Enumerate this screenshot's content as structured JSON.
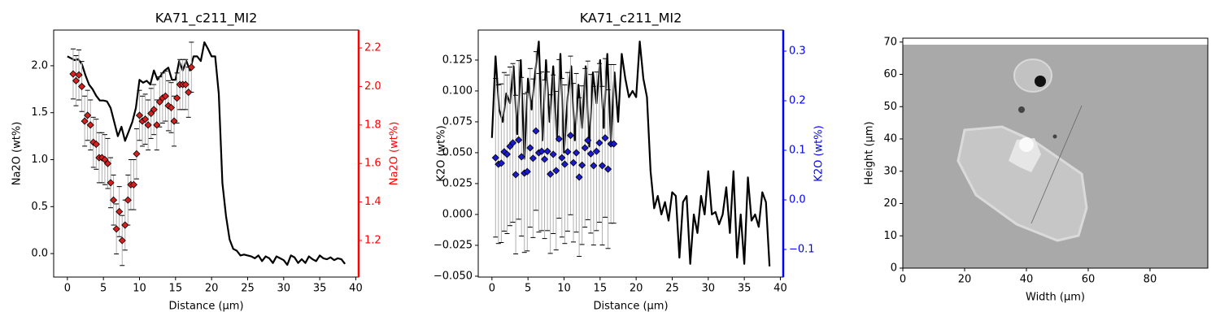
{
  "chart_data": [
    {
      "type": "dual-axis",
      "title": "KA71_c211_MI2",
      "xlabel": "Distance (µm)",
      "ylabel": "Na2O (wt%)",
      "y2label": "Na2O (wt%)",
      "y2color": "#ff0000",
      "xlim": [
        -1.9,
        40.4
      ],
      "xticks": [
        0,
        5,
        10,
        15,
        20,
        25,
        30,
        35,
        40
      ],
      "ylim": [
        -0.25,
        2.38
      ],
      "yticks": [
        {
          "value": 0,
          "label": "0.0"
        },
        0.5,
        {
          "value": 1,
          "label": "1.0"
        },
        1.5,
        {
          "value": 2,
          "label": "2.0"
        }
      ],
      "y2lim": [
        1.01,
        2.293
      ],
      "y2ticks": [
        1.2,
        1.4,
        1.6,
        1.8,
        {
          "value": 2,
          "label": "2.0"
        },
        2.2
      ],
      "series": [
        {
          "color": "#000000",
          "x": [
            0,
            0.5,
            1,
            1.5,
            2,
            2.5,
            3,
            3.5,
            4,
            4.5,
            5,
            5.5,
            6,
            6.5,
            7,
            7.5,
            8,
            8.5,
            9,
            9.5,
            10,
            10.5,
            11,
            11.5,
            12,
            12.5,
            13,
            13.5,
            14,
            14.5,
            15,
            15.5,
            16,
            16.5,
            17,
            17.5,
            18,
            18.5,
            19,
            19.5,
            20,
            20.5,
            21,
            21.5,
            22,
            22.5,
            23,
            23.5,
            24,
            24.5,
            25,
            25.5,
            26,
            26.5,
            27,
            27.5,
            28,
            28.5,
            29,
            29.5,
            30,
            30.5,
            31,
            31.5,
            32,
            32.5,
            33,
            33.5,
            34,
            34.5,
            35,
            35.5,
            36,
            36.5,
            37,
            37.5,
            38,
            38.5
          ],
          "values": [
            2.1,
            2.08,
            2.06,
            2.07,
            2.02,
            1.9,
            1.8,
            1.75,
            1.68,
            1.63,
            1.63,
            1.62,
            1.55,
            1.4,
            1.25,
            1.35,
            1.2,
            1.3,
            1.4,
            1.55,
            1.85,
            1.82,
            1.84,
            1.8,
            1.95,
            1.85,
            1.9,
            1.95,
            1.98,
            1.85,
            1.85,
            2.05,
            1.95,
            2.05,
            1.95,
            2.1,
            2.1,
            2.05,
            2.25,
            2.18,
            2.1,
            2.1,
            1.7,
            0.75,
            0.4,
            0.15,
            0.05,
            0.03,
            -0.02,
            -0.01,
            -0.02,
            -0.03,
            -0.05,
            -0.02,
            -0.08,
            -0.03,
            -0.05,
            -0.1,
            -0.03,
            -0.05,
            -0.07,
            -0.12,
            -0.02,
            -0.04,
            -0.1,
            -0.06,
            -0.1,
            -0.03,
            -0.06,
            -0.08,
            -0.02,
            -0.05,
            -0.06,
            -0.04,
            -0.07,
            -0.05,
            -0.06,
            -0.11
          ]
        },
        {
          "color": "#d62020",
          "marker": "diamond",
          "axis": "y2",
          "x": [
            0.8,
            1.2,
            1.6,
            2.0,
            2.4,
            2.8,
            3.2,
            3.6,
            4.0,
            4.4,
            4.8,
            5.2,
            5.6,
            6.0,
            6.4,
            6.8,
            7.2,
            7.6,
            8.0,
            8.4,
            8.8,
            9.2,
            9.6,
            10.0,
            10.4,
            10.8,
            11.2,
            11.6,
            12.0,
            12.4,
            12.8,
            13.2,
            13.6,
            14.0,
            14.4,
            14.8,
            15.2,
            15.6,
            16.0,
            16.4,
            16.8,
            17.2
          ],
          "values": [
            2.065,
            2.03,
            2.06,
            2.0,
            1.82,
            1.85,
            1.8,
            1.71,
            1.7,
            1.63,
            1.63,
            1.62,
            1.6,
            1.5,
            1.41,
            1.26,
            1.35,
            1.2,
            1.28,
            1.41,
            1.49,
            1.49,
            1.65,
            1.85,
            1.82,
            1.83,
            1.8,
            1.86,
            1.88,
            1.8,
            1.92,
            1.94,
            1.95,
            1.9,
            1.89,
            1.82,
            1.94,
            2.01,
            2.01,
            2.01,
            1.97,
            2.1
          ],
          "errors": [
            0.13,
            0.13,
            0.13,
            0.13,
            0.13,
            0.13,
            0.13,
            0.13,
            0.13,
            0.13,
            0.13,
            0.13,
            0.13,
            0.13,
            0.13,
            0.13,
            0.13,
            0.13,
            0.13,
            0.13,
            0.13,
            0.13,
            0.13,
            0.13,
            0.13,
            0.13,
            0.13,
            0.13,
            0.13,
            0.13,
            0.13,
            0.13,
            0.13,
            0.13,
            0.13,
            0.13,
            0.13,
            0.13,
            0.13,
            0.13,
            0.13,
            0.13
          ]
        }
      ]
    },
    {
      "type": "dual-axis",
      "title": "KA71_c211_MI2",
      "xlabel": "Distance (µm)",
      "ylabel": "K2O (wt%)",
      "y2label": "K2O (wt%)",
      "y2color": "#0000ff",
      "xlim": [
        -1.9,
        40.4
      ],
      "xticks": [
        0,
        5,
        10,
        15,
        20,
        25,
        30,
        35,
        40
      ],
      "ylim": [
        -0.0507,
        0.1493
      ],
      "yticks": [
        {
          "value": -0.05,
          "label": "−0.050"
        },
        {
          "value": -0.025,
          "label": "−0.025"
        },
        {
          "value": 0,
          "label": "0.000"
        },
        0.025,
        {
          "value": 0.05,
          "label": "0.050"
        },
        0.075,
        {
          "value": 0.1,
          "label": "0.100"
        },
        0.125
      ],
      "y2lim": [
        -0.1557,
        0.3426
      ],
      "y2ticks": [
        {
          "value": -0.1,
          "label": "−0.1"
        },
        {
          "value": 0,
          "label": "0.0"
        },
        0.1,
        0.2,
        0.3
      ],
      "series": [
        {
          "color": "#000000",
          "x": [
            0,
            0.5,
            1,
            1.5,
            2,
            2.5,
            3,
            3.5,
            4,
            4.5,
            5,
            5.5,
            6,
            6.5,
            7,
            7.5,
            8,
            8.5,
            9,
            9.5,
            10,
            10.5,
            11,
            11.5,
            12,
            12.5,
            13,
            13.5,
            14,
            14.5,
            15,
            15.5,
            16,
            16.5,
            17,
            17.5,
            18,
            18.5,
            19,
            19.5,
            20,
            20.5,
            21,
            21.5,
            22,
            22.5,
            23,
            23.5,
            24,
            24.5,
            25,
            25.5,
            26,
            26.5,
            27,
            27.5,
            28,
            28.5,
            29,
            29.5,
            30,
            30.5,
            31,
            31.5,
            32,
            32.5,
            33,
            33.5,
            34,
            34.5,
            35,
            35.5,
            36,
            36.5,
            37,
            37.5,
            38,
            38.5
          ],
          "values": [
            0.062,
            0.128,
            0.085,
            0.075,
            0.098,
            0.09,
            0.12,
            0.065,
            0.125,
            0.045,
            0.11,
            0.085,
            0.115,
            0.14,
            0.06,
            0.125,
            0.075,
            0.12,
            0.06,
            0.13,
            0.05,
            0.095,
            0.12,
            0.06,
            0.105,
            0.07,
            0.12,
            0.055,
            0.115,
            0.09,
            0.125,
            0.07,
            0.13,
            0.06,
            0.115,
            0.075,
            0.13,
            0.11,
            0.095,
            0.1,
            0.095,
            0.14,
            0.11,
            0.095,
            0.035,
            0.005,
            0.015,
            0.0,
            0.01,
            -0.005,
            0.018,
            0.015,
            -0.035,
            0.01,
            0.015,
            -0.04,
            0.0,
            -0.015,
            0.015,
            0.0,
            0.035,
            0.0,
            0.002,
            -0.008,
            0.0,
            0.022,
            -0.015,
            0.035,
            -0.035,
            0.0,
            -0.04,
            0.03,
            -0.005,
            0.0,
            -0.01,
            0.018,
            0.01,
            -0.042
          ]
        },
        {
          "color": "#1a1acc",
          "marker": "diamond",
          "axis": "y2",
          "x": [
            0.5,
            0.9,
            1.3,
            1.7,
            2.1,
            2.5,
            2.9,
            3.3,
            3.7,
            4.1,
            4.5,
            4.9,
            5.3,
            5.7,
            6.1,
            6.5,
            6.9,
            7.3,
            7.7,
            8.1,
            8.5,
            8.9,
            9.3,
            9.7,
            10.1,
            10.5,
            10.9,
            11.3,
            11.7,
            12.1,
            12.5,
            12.9,
            13.3,
            13.7,
            14.1,
            14.5,
            14.9,
            15.3,
            15.7,
            16.1,
            16.5,
            16.9
          ],
          "values": [
            0.085,
            0.072,
            0.074,
            0.097,
            0.092,
            0.108,
            0.115,
            0.051,
            0.121,
            0.087,
            0.054,
            0.057,
            0.105,
            0.084,
            0.139,
            0.095,
            0.098,
            0.082,
            0.098,
            0.052,
            0.092,
            0.059,
            0.123,
            0.085,
            0.072,
            0.097,
            0.13,
            0.075,
            0.095,
            0.046,
            0.07,
            0.105,
            0.12,
            0.093,
            0.069,
            0.098,
            0.115,
            0.069,
            0.125,
            0.062,
            0.113,
            0.113
          ],
          "errors": [
            0.16,
            0.16,
            0.16,
            0.16,
            0.16,
            0.16,
            0.16,
            0.16,
            0.16,
            0.16,
            0.16,
            0.16,
            0.16,
            0.16,
            0.16,
            0.16,
            0.16,
            0.16,
            0.16,
            0.16,
            0.16,
            0.16,
            0.16,
            0.16,
            0.16,
            0.16,
            0.16,
            0.16,
            0.16,
            0.16,
            0.16,
            0.16,
            0.16,
            0.16,
            0.16,
            0.16,
            0.16,
            0.16,
            0.16,
            0.16,
            0.16,
            0.16
          ]
        }
      ]
    },
    {
      "type": "image",
      "xlabel": "Width (µm)",
      "ylabel": "Height (µm)",
      "xlim": [
        0,
        98.7
      ],
      "xticks": [
        0,
        20,
        40,
        60,
        80
      ],
      "ylim": [
        0,
        71.2
      ],
      "yticks": [
        0,
        10,
        20,
        30,
        40,
        50,
        60,
        70
      ]
    }
  ]
}
